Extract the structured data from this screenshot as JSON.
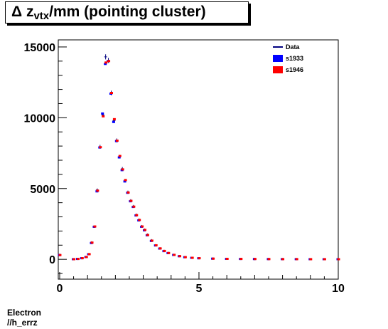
{
  "title": {
    "delta": "Δ",
    "z": "z",
    "subscript": "vtx",
    "rest": "/mm (pointing cluster)"
  },
  "footer": {
    "line1": "Electron",
    "line2": "//h_errz"
  },
  "chart_data": {
    "type": "scatter",
    "title": "Δ z_vtx/mm (pointing cluster)",
    "xlabel": "",
    "ylabel": "",
    "xlim": [
      -0.05,
      10.0
    ],
    "ylim": [
      -1400,
      15500
    ],
    "x_ticks": [
      0,
      5,
      10
    ],
    "x_tick_labels": [
      "0",
      "5",
      "10"
    ],
    "y_ticks": [
      0,
      5000,
      10000,
      15000
    ],
    "y_tick_labels": [
      "0",
      "5000",
      "10000",
      "15000"
    ],
    "grid": false,
    "legend_position": "top-right",
    "colors": {
      "Data": "#000080",
      "s1933": "#0000ff",
      "s1946": "#ff0000"
    },
    "x": [
      0.0,
      0.5,
      0.65,
      0.8,
      0.95,
      1.05,
      1.15,
      1.25,
      1.35,
      1.45,
      1.55,
      1.65,
      1.75,
      1.85,
      1.95,
      2.05,
      2.15,
      2.25,
      2.35,
      2.45,
      2.55,
      2.65,
      2.75,
      2.85,
      2.95,
      3.05,
      3.15,
      3.3,
      3.45,
      3.6,
      3.75,
      3.9,
      4.1,
      4.3,
      4.5,
      4.75,
      5.0,
      5.5,
      6.0,
      6.5,
      7.0,
      7.5,
      8.0,
      8.5,
      9.0,
      9.5,
      10.0
    ],
    "series": [
      {
        "name": "Data",
        "values": [
          320,
          10,
          30,
          80,
          170,
          370,
          1200,
          2300,
          4900,
          7950,
          10200,
          14300,
          14050,
          11750,
          9800,
          8400,
          7250,
          6400,
          5550,
          4750,
          4150,
          3750,
          3150,
          2800,
          2350,
          2100,
          1750,
          1350,
          1000,
          780,
          600,
          450,
          320,
          230,
          160,
          110,
          80,
          50,
          35,
          30,
          25,
          20,
          15,
          15,
          10,
          10,
          10
        ]
      },
      {
        "name": "s1933",
        "values": [
          300,
          10,
          30,
          80,
          160,
          360,
          1150,
          2300,
          4800,
          7900,
          10300,
          13800,
          14000,
          11700,
          9700,
          8350,
          7200,
          6300,
          5500,
          4700,
          4100,
          3700,
          3100,
          2750,
          2300,
          2050,
          1700,
          1300,
          980,
          760,
          580,
          440,
          310,
          220,
          150,
          105,
          75,
          48,
          33,
          28,
          22,
          18,
          14,
          13,
          10,
          9,
          9
        ]
      },
      {
        "name": "s1946",
        "values": [
          300,
          10,
          30,
          80,
          165,
          365,
          1180,
          2320,
          4850,
          7920,
          10100,
          13900,
          14000,
          11750,
          9900,
          8380,
          7300,
          6350,
          5600,
          4720,
          4130,
          3720,
          3120,
          2780,
          2320,
          2080,
          1720,
          1320,
          990,
          770,
          590,
          445,
          315,
          225,
          155,
          108,
          78,
          49,
          34,
          29,
          23,
          19,
          14,
          14,
          10,
          10,
          9
        ]
      }
    ]
  }
}
